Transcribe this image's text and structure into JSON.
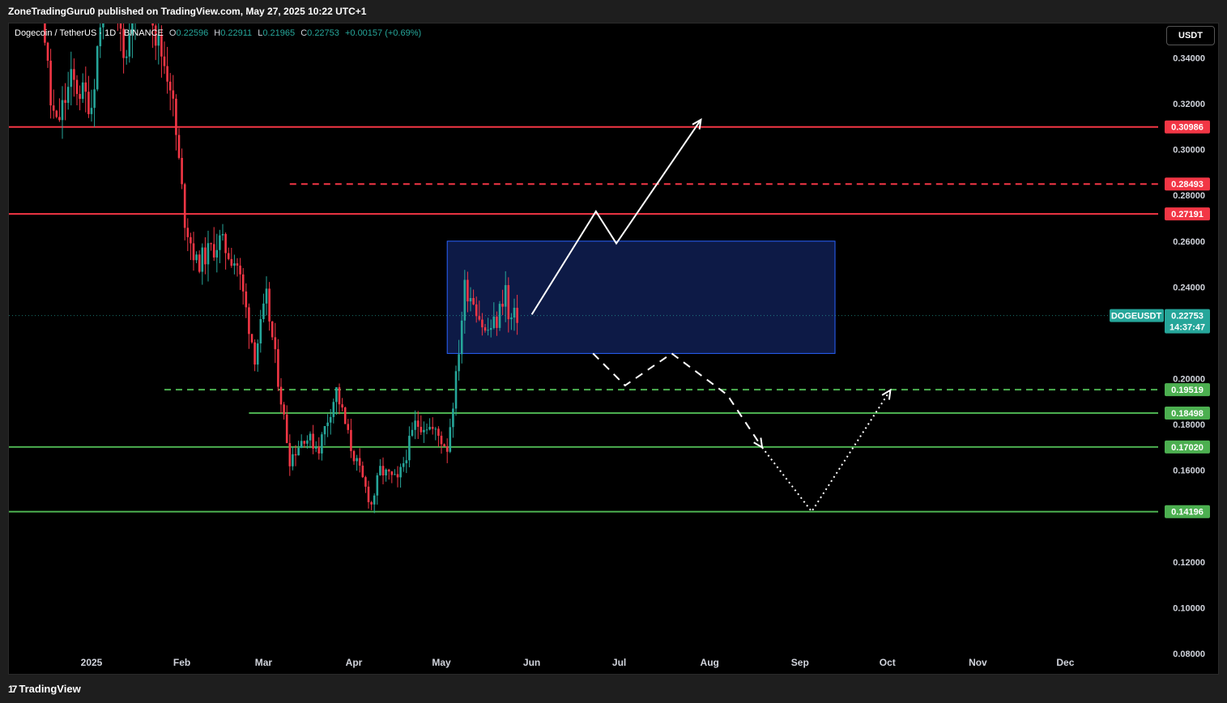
{
  "header": {
    "published_text": "ZoneTradingGuru0 published on TradingView.com, May 27, 2025 10:22 UTC+1"
  },
  "legend": {
    "symbol": "Dogecoin / TetherUS · 1D · BINANCE",
    "open_label": "O",
    "open": "0.22596",
    "high_label": "H",
    "high": "0.22911",
    "low_label": "L",
    "low": "0.21965",
    "close_label": "C",
    "close": "0.22753",
    "change": "+0.00157 (+0.69%)"
  },
  "currency_button": "USDT",
  "footer": {
    "brand": "TradingView",
    "brand_icon": "tradingview-logo-icon"
  },
  "colors": {
    "bull": "#26a69a",
    "bear": "#f23645",
    "resistance": "#f23645",
    "support": "#4caf50",
    "zone_fill": "#0d1a46",
    "zone_border": "#2962ff",
    "price_tag": "#26a69a"
  },
  "chart_data": {
    "type": "candlestick",
    "title": "Dogecoin / TetherUS · 1D · BINANCE",
    "ylim": [
      0.08,
      0.355
    ],
    "y_ticks": [
      "0.34000",
      "0.32000",
      "0.30000",
      "0.28000",
      "0.26000",
      "0.24000",
      "0.20000",
      "0.18000",
      "0.16000",
      "0.12000",
      "0.10000",
      "0.08000"
    ],
    "x_ticks": [
      {
        "label": "2025",
        "date": "2025-01-01"
      },
      {
        "label": "Feb",
        "date": "2025-02-01"
      },
      {
        "label": "Mar",
        "date": "2025-03-01"
      },
      {
        "label": "Apr",
        "date": "2025-04-01"
      },
      {
        "label": "May",
        "date": "2025-05-01"
      },
      {
        "label": "Jun",
        "date": "2025-06-01"
      },
      {
        "label": "Jul",
        "date": "2025-07-01"
      },
      {
        "label": "Aug",
        "date": "2025-08-01"
      },
      {
        "label": "Sep",
        "date": "2025-09-01"
      },
      {
        "label": "Oct",
        "date": "2025-10-01"
      },
      {
        "label": "Nov",
        "date": "2025-11-01"
      },
      {
        "label": "Dec",
        "date": "2025-12-01"
      }
    ],
    "price_path": [
      {
        "date": "2024-12-10",
        "close": 0.4
      },
      {
        "date": "2024-12-14",
        "close": 0.38
      },
      {
        "date": "2024-12-18",
        "close": 0.32
      },
      {
        "date": "2024-12-20",
        "close": 0.31
      },
      {
        "date": "2024-12-25",
        "close": 0.33
      },
      {
        "date": "2025-01-01",
        "close": 0.32
      },
      {
        "date": "2025-01-06",
        "close": 0.38
      },
      {
        "date": "2025-01-13",
        "close": 0.34
      },
      {
        "date": "2025-01-18",
        "close": 0.4
      },
      {
        "date": "2025-01-23",
        "close": 0.35
      },
      {
        "date": "2025-01-28",
        "close": 0.33
      },
      {
        "date": "2025-02-02",
        "close": 0.27
      },
      {
        "date": "2025-02-06",
        "close": 0.25
      },
      {
        "date": "2025-02-14",
        "close": 0.26
      },
      {
        "date": "2025-02-20",
        "close": 0.25
      },
      {
        "date": "2025-02-26",
        "close": 0.21
      },
      {
        "date": "2025-03-02",
        "close": 0.235
      },
      {
        "date": "2025-03-06",
        "close": 0.2
      },
      {
        "date": "2025-03-10",
        "close": 0.165
      },
      {
        "date": "2025-03-15",
        "close": 0.175
      },
      {
        "date": "2025-03-20",
        "close": 0.17
      },
      {
        "date": "2025-03-26",
        "close": 0.195
      },
      {
        "date": "2025-03-31",
        "close": 0.17
      },
      {
        "date": "2025-04-07",
        "close": 0.145
      },
      {
        "date": "2025-04-10",
        "close": 0.16
      },
      {
        "date": "2025-04-16",
        "close": 0.155
      },
      {
        "date": "2025-04-22",
        "close": 0.18
      },
      {
        "date": "2025-04-26",
        "close": 0.18
      },
      {
        "date": "2025-04-30",
        "close": 0.175
      },
      {
        "date": "2025-05-03",
        "close": 0.17
      },
      {
        "date": "2025-05-06",
        "close": 0.2
      },
      {
        "date": "2025-05-09",
        "close": 0.24
      },
      {
        "date": "2025-05-12",
        "close": 0.235
      },
      {
        "date": "2025-05-16",
        "close": 0.22
      },
      {
        "date": "2025-05-20",
        "close": 0.225
      },
      {
        "date": "2025-05-23",
        "close": 0.24
      },
      {
        "date": "2025-05-24",
        "close": 0.225
      },
      {
        "date": "2025-05-27",
        "close": 0.22753
      }
    ],
    "horizontal_levels": [
      {
        "value": 0.30986,
        "label": "0.30986",
        "color": "#f23645",
        "style": "solid",
        "start": "2024-12-01"
      },
      {
        "value": 0.28493,
        "label": "0.28493",
        "color": "#f23645",
        "style": "dashed",
        "start": "2025-03-10"
      },
      {
        "value": 0.27191,
        "label": "0.27191",
        "color": "#f23645",
        "style": "solid",
        "start": "2024-12-01"
      },
      {
        "value": 0.19519,
        "label": "0.19519",
        "color": "#4caf50",
        "style": "dashed",
        "start": "2025-01-26"
      },
      {
        "value": 0.18498,
        "label": "0.18498",
        "color": "#4caf50",
        "style": "solid",
        "start": "2025-02-24"
      },
      {
        "value": 0.1702,
        "label": "0.17020",
        "color": "#4caf50",
        "style": "solid",
        "start": "2024-12-01"
      },
      {
        "value": 0.14196,
        "label": "0.14196",
        "color": "#4caf50",
        "style": "solid",
        "start": "2024-12-01"
      }
    ],
    "zone": {
      "top": 0.26,
      "bottom": 0.211,
      "start": "2025-05-03",
      "end": "2025-09-13"
    },
    "projections": [
      {
        "style": "solid",
        "arrow": true,
        "points": [
          {
            "date": "2025-06-01",
            "price": 0.228
          },
          {
            "date": "2025-06-23",
            "price": 0.273
          },
          {
            "date": "2025-06-30",
            "price": 0.259
          },
          {
            "date": "2025-07-29",
            "price": 0.313
          }
        ]
      },
      {
        "style": "dashed",
        "arrow": true,
        "points": [
          {
            "date": "2025-06-22",
            "price": 0.211
          },
          {
            "date": "2025-07-03",
            "price": 0.197
          },
          {
            "date": "2025-07-19",
            "price": 0.211
          },
          {
            "date": "2025-08-07",
            "price": 0.193
          },
          {
            "date": "2025-08-19",
            "price": 0.17
          }
        ]
      },
      {
        "style": "dotted",
        "arrow": true,
        "points": [
          {
            "date": "2025-08-19",
            "price": 0.17
          },
          {
            "date": "2025-09-05",
            "price": 0.142
          },
          {
            "date": "2025-10-02",
            "price": 0.195
          }
        ]
      }
    ],
    "last_price": {
      "symbol": "DOGEUSDT",
      "price": "0.22753",
      "countdown": "14:37:47",
      "value": 0.22753
    }
  }
}
